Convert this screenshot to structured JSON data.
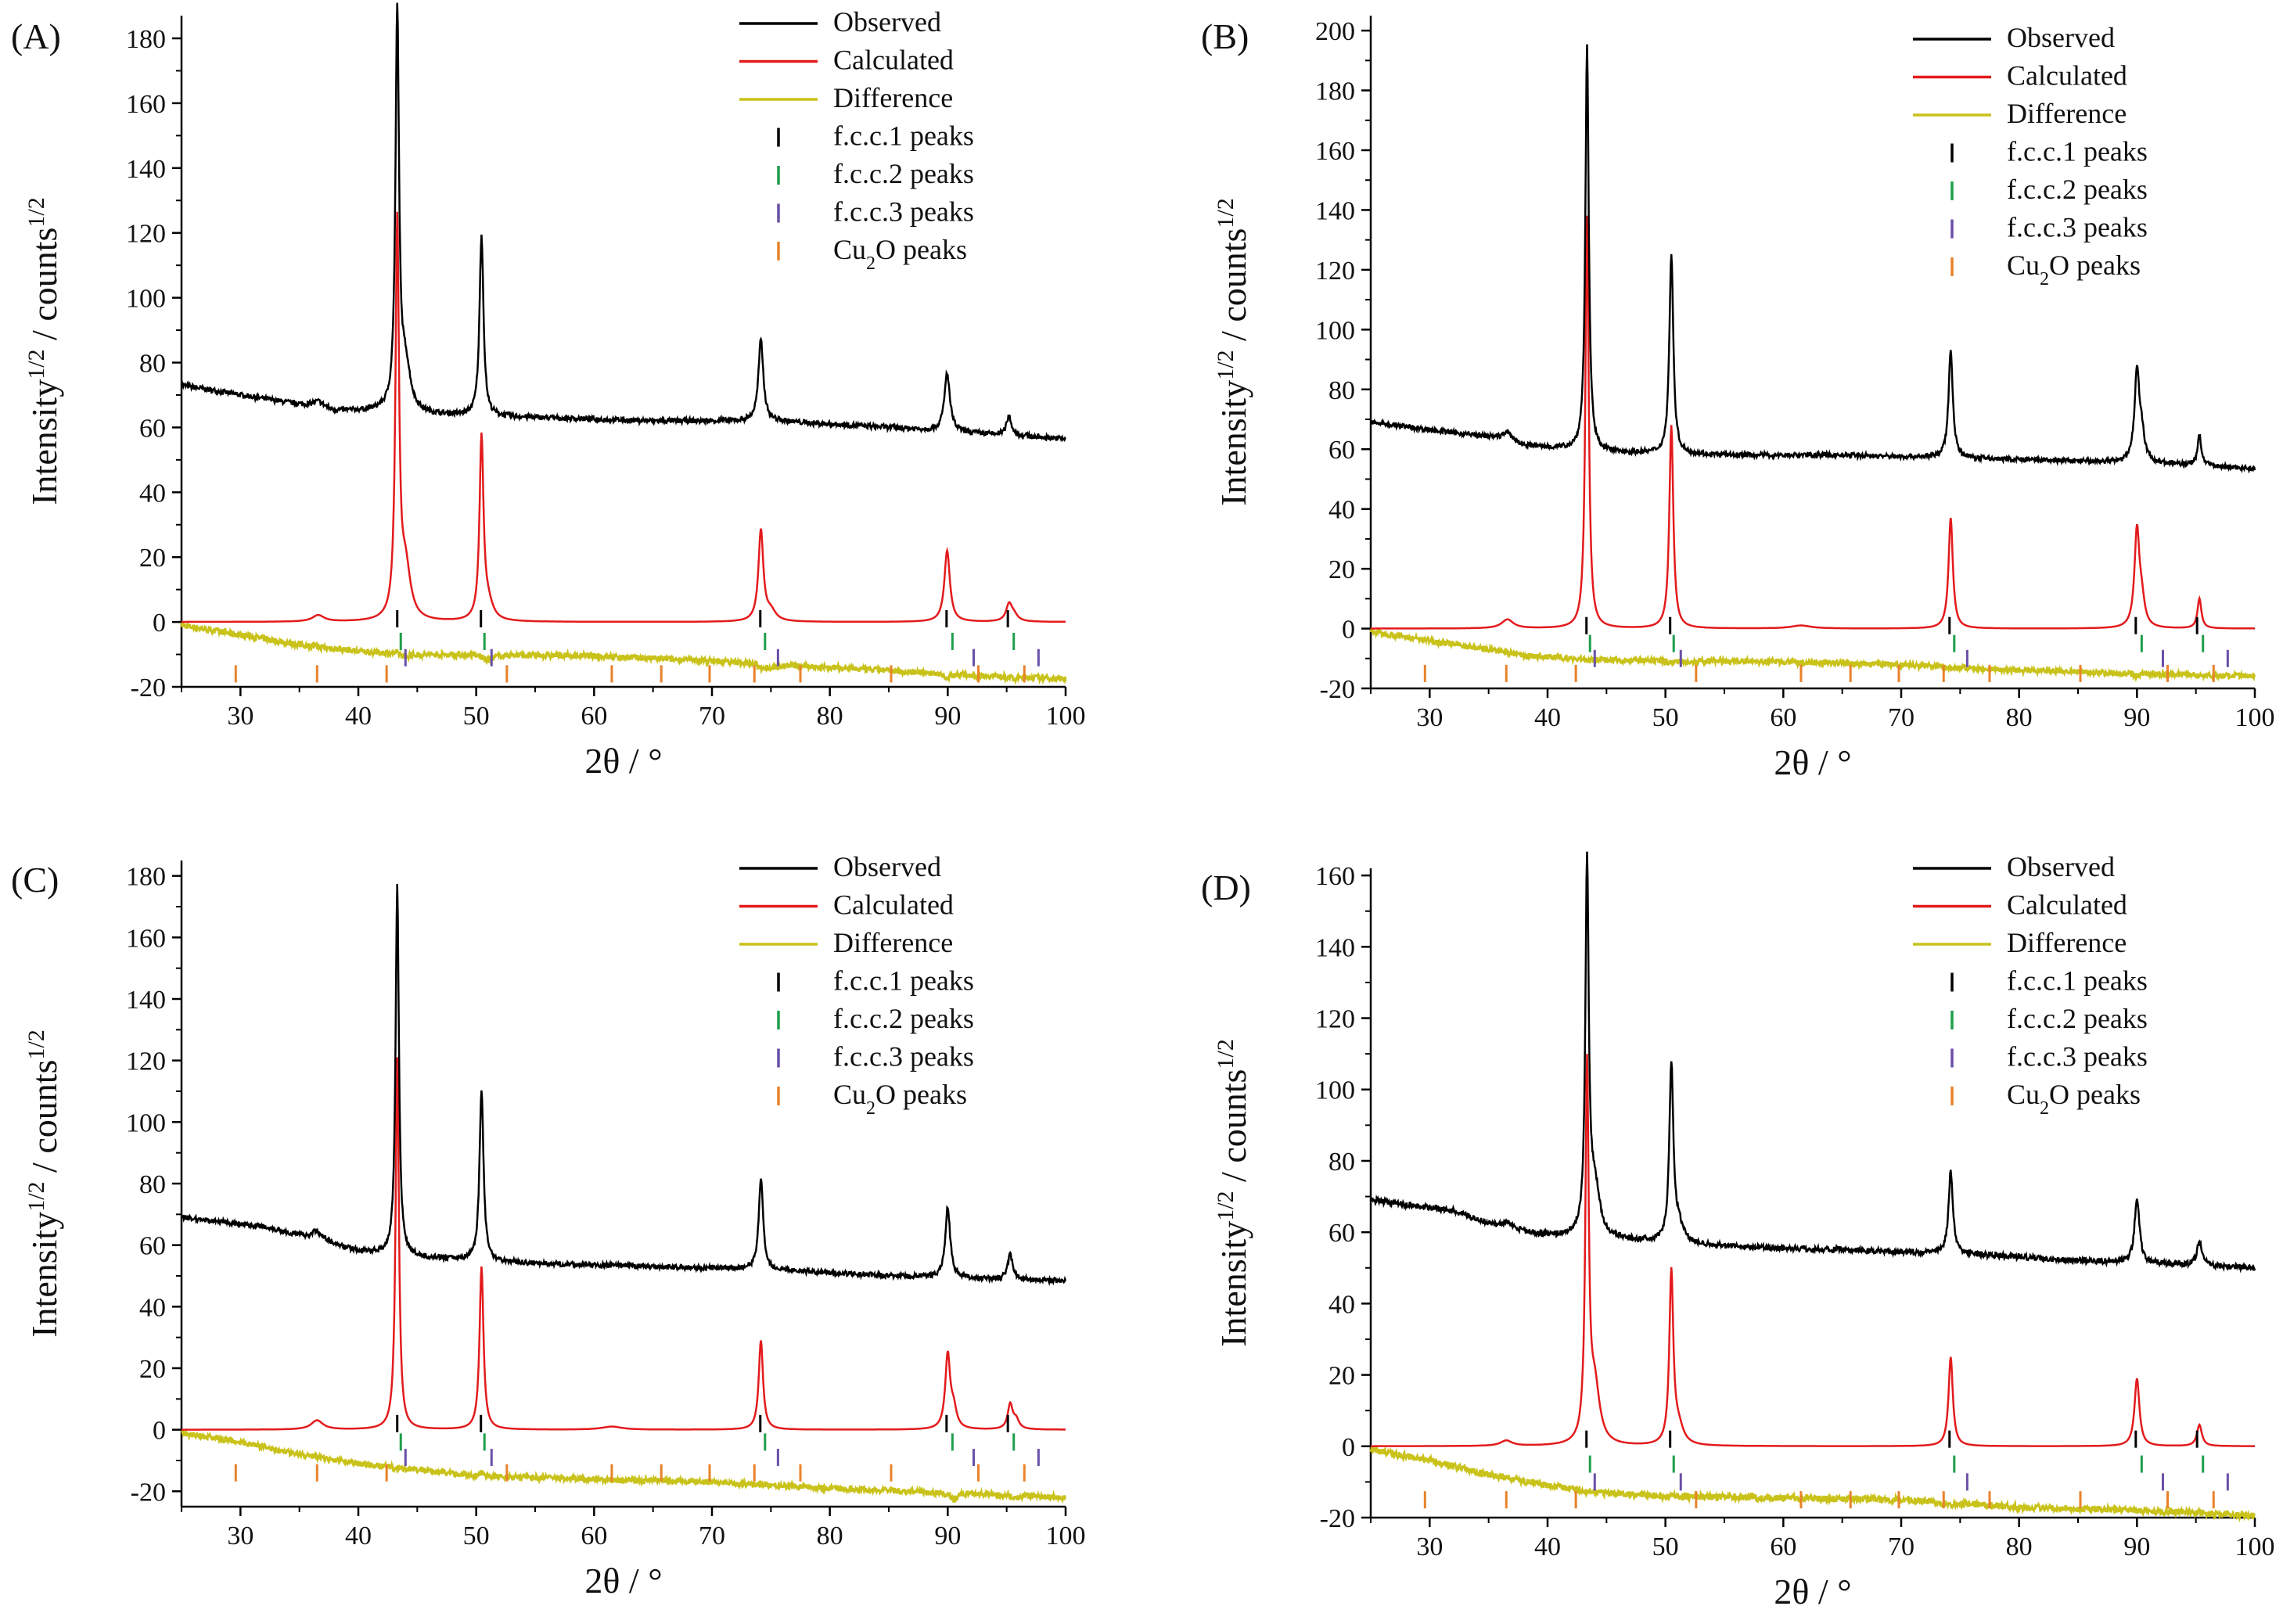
{
  "figure": {
    "layout": "2x2 grid of XRD refinement plots"
  },
  "colors": {
    "observed": "#000000",
    "calculated": "#e31a1c",
    "difference": "#c9c21a",
    "fcc1": "#000000",
    "fcc2": "#1e9e4a",
    "fcc3": "#6a4fa8",
    "cu2o": "#e8822a"
  },
  "reflections": {
    "fcc1": [
      43.3,
      50.4,
      74.1,
      89.9,
      95.1
    ],
    "fcc2": [
      43.6,
      50.7,
      74.5,
      90.4,
      95.6
    ],
    "fcc3": [
      44.0,
      51.3,
      75.6,
      92.2,
      97.7
    ],
    "cu2o": [
      29.6,
      36.5,
      42.4,
      52.6,
      61.5,
      65.7,
      69.8,
      73.6,
      77.5,
      85.2,
      92.6,
      96.5
    ]
  },
  "chart_data": [
    {
      "type": "line",
      "panel_label": "(A)",
      "xlabel": "2θ / °",
      "ylabel_main": "Intensity",
      "ylabel_sup1": "1/2",
      "ylabel_mid": " / counts",
      "ylabel_sup2": "1/2",
      "xlim": [
        25,
        100
      ],
      "ylim": [
        -20,
        187
      ],
      "xticks": [
        30,
        40,
        50,
        60,
        70,
        80,
        90,
        100
      ],
      "yticks": [
        -20,
        0,
        20,
        40,
        60,
        80,
        100,
        120,
        140,
        160,
        180
      ],
      "legend": [
        "Observed",
        "Calculated",
        "Difference",
        "f.c.c.1 peaks",
        "f.c.c.2 peaks",
        "f.c.c.3 peaks",
        "Cu2O peaks"
      ],
      "legend_cu2o": {
        "pre": "Cu",
        "sub": "2",
        "post": "O peaks"
      },
      "legend_position": "top-right",
      "observed": {
        "background": [
          [
            25,
            73
          ],
          [
            35,
            67
          ],
          [
            38,
            65
          ],
          [
            42,
            65
          ],
          [
            45,
            64
          ],
          [
            55,
            63
          ],
          [
            65,
            62
          ],
          [
            75,
            62
          ],
          [
            85,
            60
          ],
          [
            93,
            58
          ],
          [
            100,
            56.5
          ]
        ],
        "peaks": [
          [
            43.3,
            122,
            0.18
          ],
          [
            44.0,
            14,
            0.5
          ],
          [
            50.45,
            56,
            0.2
          ],
          [
            74.15,
            25,
            0.25
          ],
          [
            89.95,
            18,
            0.28
          ],
          [
            95.2,
            6,
            0.25
          ],
          [
            36.6,
            2,
            0.6
          ]
        ]
      },
      "calculated": {
        "peaks": [
          [
            43.3,
            121,
            0.18
          ],
          [
            44.0,
            16,
            0.5
          ],
          [
            50.45,
            56,
            0.2
          ],
          [
            51.0,
            5,
            0.5
          ],
          [
            74.15,
            28,
            0.25
          ],
          [
            75.0,
            3,
            0.5
          ],
          [
            89.95,
            22,
            0.28
          ],
          [
            95.2,
            5,
            0.3
          ],
          [
            95.6,
            2,
            0.4
          ],
          [
            36.6,
            2,
            0.6
          ]
        ]
      },
      "difference": [
        [
          25,
          -1
        ],
        [
          30,
          -4
        ],
        [
          35,
          -7
        ],
        [
          40,
          -9
        ],
        [
          45,
          -10
        ],
        [
          50,
          -10
        ],
        [
          60,
          -10.5
        ],
        [
          70,
          -12
        ],
        [
          80,
          -14
        ],
        [
          90,
          -16
        ],
        [
          100,
          -17.5
        ]
      ],
      "tick_rows": {
        "fcc1": 1,
        "fcc2": -6,
        "fcc3": -11,
        "cu2o": -16
      }
    },
    {
      "type": "line",
      "panel_label": "(B)",
      "xlabel": "2θ / °",
      "ylabel_main": "Intensity",
      "ylabel_sup1": "1/2",
      "ylabel_mid": " / counts",
      "ylabel_sup2": "1/2",
      "xlim": [
        25,
        100
      ],
      "ylim": [
        -20,
        205
      ],
      "xticks": [
        30,
        40,
        50,
        60,
        70,
        80,
        90,
        100
      ],
      "yticks": [
        -20,
        0,
        20,
        40,
        60,
        80,
        100,
        120,
        140,
        160,
        180,
        200
      ],
      "legend": [
        "Observed",
        "Calculated",
        "Difference",
        "f.c.c.1 peaks",
        "f.c.c.2 peaks",
        "f.c.c.3 peaks",
        "Cu2O peaks"
      ],
      "legend_cu2o": {
        "pre": "Cu",
        "sub": "2",
        "post": "O peaks"
      },
      "legend_position": "top-right",
      "observed": {
        "background": [
          [
            25,
            69
          ],
          [
            35,
            64
          ],
          [
            38,
            61
          ],
          [
            42,
            60
          ],
          [
            45,
            59
          ],
          [
            55,
            58
          ],
          [
            65,
            58
          ],
          [
            75,
            57
          ],
          [
            85,
            56
          ],
          [
            93,
            55
          ],
          [
            100,
            53.5
          ]
        ],
        "peaks": [
          [
            43.35,
            136,
            0.17
          ],
          [
            50.5,
            67,
            0.2
          ],
          [
            74.2,
            36,
            0.22
          ],
          [
            90.0,
            30,
            0.25
          ],
          [
            90.4,
            8,
            0.3
          ],
          [
            95.3,
            10,
            0.2
          ],
          [
            36.6,
            3,
            0.6
          ]
        ]
      },
      "calculated": {
        "peaks": [
          [
            43.35,
            138,
            0.17
          ],
          [
            50.5,
            68,
            0.2
          ],
          [
            74.2,
            37,
            0.22
          ],
          [
            90.0,
            32,
            0.25
          ],
          [
            90.4,
            8,
            0.3
          ],
          [
            95.3,
            10,
            0.2
          ],
          [
            36.6,
            3,
            0.6
          ],
          [
            61.5,
            1,
            1.0
          ]
        ]
      },
      "difference": [
        [
          25,
          -1
        ],
        [
          30,
          -4
        ],
        [
          35,
          -7
        ],
        [
          38,
          -9
        ],
        [
          42,
          -10
        ],
        [
          50,
          -11
        ],
        [
          60,
          -11
        ],
        [
          70,
          -12
        ],
        [
          80,
          -14
        ],
        [
          90,
          -15
        ],
        [
          100,
          -16
        ]
      ],
      "tick_rows": {
        "fcc1": 1,
        "fcc2": -5,
        "fcc3": -10,
        "cu2o": -15
      }
    },
    {
      "type": "line",
      "panel_label": "(C)",
      "xlabel": "2θ / °",
      "ylabel_main": "Intensity",
      "ylabel_sup1": "1/2",
      "ylabel_mid": " / counts",
      "ylabel_sup2": "1/2",
      "xlim": [
        25,
        100
      ],
      "ylim": [
        -25,
        185
      ],
      "xticks": [
        30,
        40,
        50,
        60,
        70,
        80,
        90,
        100
      ],
      "yticks": [
        -20,
        0,
        20,
        40,
        60,
        80,
        100,
        120,
        140,
        160,
        180
      ],
      "legend": [
        "Observed",
        "Calculated",
        "Difference",
        "f.c.c.1 peaks",
        "f.c.c.2 peaks",
        "f.c.c.3 peaks",
        "Cu2O peaks"
      ],
      "legend_cu2o": {
        "pre": "Cu",
        "sub": "2",
        "post": "O peaks"
      },
      "legend_position": "top-right",
      "observed": {
        "background": [
          [
            25,
            69
          ],
          [
            32,
            66
          ],
          [
            36,
            62
          ],
          [
            40,
            58
          ],
          [
            45,
            56
          ],
          [
            55,
            54
          ],
          [
            65,
            53
          ],
          [
            75,
            52
          ],
          [
            85,
            50
          ],
          [
            93,
            49
          ],
          [
            100,
            48.5
          ]
        ],
        "peaks": [
          [
            43.3,
            120,
            0.17
          ],
          [
            50.45,
            56,
            0.2
          ],
          [
            74.15,
            30,
            0.22
          ],
          [
            90.0,
            23,
            0.25
          ],
          [
            95.3,
            8,
            0.25
          ],
          [
            36.5,
            3,
            0.6
          ]
        ]
      },
      "calculated": {
        "peaks": [
          [
            43.3,
            121,
            0.17
          ],
          [
            50.45,
            53,
            0.2
          ],
          [
            74.15,
            29,
            0.22
          ],
          [
            90.0,
            24,
            0.25
          ],
          [
            90.5,
            6,
            0.3
          ],
          [
            95.3,
            8,
            0.25
          ],
          [
            95.8,
            3,
            0.3
          ],
          [
            36.5,
            3,
            0.6
          ],
          [
            61.5,
            1,
            1.0
          ]
        ]
      },
      "difference": [
        [
          25,
          -1
        ],
        [
          30,
          -4
        ],
        [
          35,
          -8
        ],
        [
          40,
          -11
        ],
        [
          45,
          -13
        ],
        [
          50,
          -15
        ],
        [
          60,
          -16
        ],
        [
          70,
          -17
        ],
        [
          80,
          -19
        ],
        [
          90,
          -20.5
        ],
        [
          100,
          -22
        ]
      ],
      "tick_rows": {
        "fcc1": 2,
        "fcc2": -4,
        "fcc3": -9,
        "cu2o": -14
      }
    },
    {
      "type": "line",
      "panel_label": "(D)",
      "xlabel": "2θ / °",
      "ylabel_main": "Intensity",
      "ylabel_sup1": "1/2",
      "ylabel_mid": " / counts",
      "ylabel_sup2": "1/2",
      "xlim": [
        25,
        100
      ],
      "ylim": [
        -20,
        162
      ],
      "xticks": [
        30,
        40,
        50,
        60,
        70,
        80,
        90,
        100
      ],
      "yticks": [
        -20,
        0,
        20,
        40,
        60,
        80,
        100,
        120,
        140,
        160
      ],
      "legend": [
        "Observed",
        "Calculated",
        "Difference",
        "f.c.c.1 peaks",
        "f.c.c.2 peaks",
        "f.c.c.3 peaks",
        "Cu2O peaks"
      ],
      "legend_cu2o": {
        "pre": "Cu",
        "sub": "2",
        "post": "O peaks"
      },
      "legend_position": "top-right",
      "observed": {
        "background": [
          [
            25,
            69
          ],
          [
            32,
            66
          ],
          [
            36,
            61
          ],
          [
            40,
            59
          ],
          [
            45,
            58
          ],
          [
            55,
            56
          ],
          [
            65,
            55
          ],
          [
            75,
            54
          ],
          [
            85,
            52
          ],
          [
            93,
            51
          ],
          [
            100,
            50
          ]
        ],
        "peaks": [
          [
            43.35,
            103,
            0.17
          ],
          [
            44.0,
            14,
            0.5
          ],
          [
            50.5,
            49,
            0.2
          ],
          [
            51.1,
            5,
            0.5
          ],
          [
            74.2,
            23,
            0.22
          ],
          [
            90.0,
            18,
            0.25
          ],
          [
            95.3,
            7,
            0.25
          ],
          [
            36.5,
            2,
            0.6
          ]
        ]
      },
      "calculated": {
        "peaks": [
          [
            43.35,
            104,
            0.17
          ],
          [
            44.0,
            16,
            0.5
          ],
          [
            50.5,
            48,
            0.2
          ],
          [
            51.1,
            5,
            0.5
          ],
          [
            74.2,
            25,
            0.22
          ],
          [
            90.0,
            19,
            0.25
          ],
          [
            95.3,
            6,
            0.25
          ],
          [
            36.5,
            1.5,
            0.6
          ]
        ]
      },
      "difference": [
        [
          25,
          -1
        ],
        [
          30,
          -4
        ],
        [
          35,
          -8
        ],
        [
          40,
          -11
        ],
        [
          45,
          -13
        ],
        [
          50,
          -14
        ],
        [
          60,
          -14.5
        ],
        [
          70,
          -15
        ],
        [
          80,
          -17
        ],
        [
          90,
          -18
        ],
        [
          100,
          -19.5
        ]
      ],
      "tick_rows": {
        "fcc1": 2,
        "fcc2": -5,
        "fcc3": -10,
        "cu2o": -15
      }
    }
  ]
}
